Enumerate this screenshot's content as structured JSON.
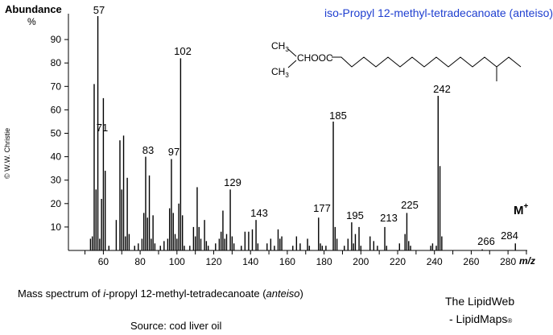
{
  "header": {
    "y_axis_label": "Abundance",
    "y_axis_unit": "%",
    "title": "iso-Propyl 12-methyl-tetradecanoate  (anteiso)"
  },
  "structure": {
    "methyl_top": "CH3",
    "group": "CHOOC",
    "methyl_bottom": "CH3"
  },
  "molecular_ion_label": "M+",
  "copyright": "© W.W. Christie",
  "caption": {
    "prefix": "Mass spectrum of ",
    "italic_i": "i",
    "middle": "-propyl 12-methyl-tetradecanoate (",
    "italic_anteiso": "anteiso",
    "suffix": ")"
  },
  "source": "Source: cod liver oil",
  "branding": {
    "line1": "The LipidWeb",
    "line2": "- LipidMaps",
    "mark": "®"
  },
  "chart_data": {
    "type": "bar",
    "xlabel": "m/z",
    "ylabel": "Abundance %",
    "xlim": [
      41,
      291
    ],
    "ylim": [
      0,
      100
    ],
    "x_ticks": [
      60,
      80,
      100,
      120,
      140,
      160,
      180,
      200,
      220,
      240,
      260,
      280
    ],
    "y_ticks": [
      10,
      20,
      30,
      40,
      50,
      60,
      70,
      80,
      90
    ],
    "peaks": [
      {
        "x": 53,
        "y": 5
      },
      {
        "x": 54,
        "y": 6
      },
      {
        "x": 55,
        "y": 71
      },
      {
        "x": 56,
        "y": 26
      },
      {
        "x": 57,
        "y": 100
      },
      {
        "x": 58,
        "y": 5
      },
      {
        "x": 59,
        "y": 22
      },
      {
        "x": 60,
        "y": 65
      },
      {
        "x": 61,
        "y": 34
      },
      {
        "x": 63,
        "y": 2
      },
      {
        "x": 67,
        "y": 13
      },
      {
        "x": 69,
        "y": 47
      },
      {
        "x": 70,
        "y": 26
      },
      {
        "x": 71,
        "y": 49
      },
      {
        "x": 72,
        "y": 6
      },
      {
        "x": 73,
        "y": 31
      },
      {
        "x": 74,
        "y": 7
      },
      {
        "x": 77,
        "y": 2
      },
      {
        "x": 79,
        "y": 3
      },
      {
        "x": 81,
        "y": 5
      },
      {
        "x": 82,
        "y": 16
      },
      {
        "x": 83,
        "y": 40
      },
      {
        "x": 84,
        "y": 14
      },
      {
        "x": 85,
        "y": 32
      },
      {
        "x": 86,
        "y": 5
      },
      {
        "x": 87,
        "y": 15
      },
      {
        "x": 88,
        "y": 3
      },
      {
        "x": 91,
        "y": 2
      },
      {
        "x": 93,
        "y": 4
      },
      {
        "x": 95,
        "y": 5
      },
      {
        "x": 96,
        "y": 18
      },
      {
        "x": 97,
        "y": 39
      },
      {
        "x": 98,
        "y": 16
      },
      {
        "x": 99,
        "y": 7
      },
      {
        "x": 100,
        "y": 5
      },
      {
        "x": 101,
        "y": 20
      },
      {
        "x": 102,
        "y": 82
      },
      {
        "x": 103,
        "y": 15
      },
      {
        "x": 104,
        "y": 2
      },
      {
        "x": 107,
        "y": 2
      },
      {
        "x": 109,
        "y": 10
      },
      {
        "x": 110,
        "y": 6
      },
      {
        "x": 111,
        "y": 27
      },
      {
        "x": 112,
        "y": 10
      },
      {
        "x": 113,
        "y": 5
      },
      {
        "x": 115,
        "y": 13
      },
      {
        "x": 116,
        "y": 4
      },
      {
        "x": 117,
        "y": 2
      },
      {
        "x": 121,
        "y": 3
      },
      {
        "x": 123,
        "y": 5
      },
      {
        "x": 124,
        "y": 8
      },
      {
        "x": 125,
        "y": 17
      },
      {
        "x": 126,
        "y": 5
      },
      {
        "x": 127,
        "y": 7
      },
      {
        "x": 129,
        "y": 26
      },
      {
        "x": 130,
        "y": 6
      },
      {
        "x": 131,
        "y": 3
      },
      {
        "x": 135,
        "y": 2
      },
      {
        "x": 137,
        "y": 8
      },
      {
        "x": 139,
        "y": 8
      },
      {
        "x": 141,
        "y": 9
      },
      {
        "x": 143,
        "y": 13
      },
      {
        "x": 144,
        "y": 3
      },
      {
        "x": 149,
        "y": 3
      },
      {
        "x": 151,
        "y": 5
      },
      {
        "x": 153,
        "y": 2
      },
      {
        "x": 155,
        "y": 9
      },
      {
        "x": 156,
        "y": 5
      },
      {
        "x": 157,
        "y": 6
      },
      {
        "x": 163,
        "y": 2
      },
      {
        "x": 165,
        "y": 6
      },
      {
        "x": 167,
        "y": 3
      },
      {
        "x": 171,
        "y": 5
      },
      {
        "x": 172,
        "y": 2
      },
      {
        "x": 177,
        "y": 14
      },
      {
        "x": 178,
        "y": 3
      },
      {
        "x": 179,
        "y": 2
      },
      {
        "x": 181,
        "y": 2
      },
      {
        "x": 185,
        "y": 55
      },
      {
        "x": 186,
        "y": 10
      },
      {
        "x": 187,
        "y": 5
      },
      {
        "x": 191,
        "y": 2
      },
      {
        "x": 193,
        "y": 5
      },
      {
        "x": 195,
        "y": 12
      },
      {
        "x": 196,
        "y": 3
      },
      {
        "x": 197,
        "y": 7
      },
      {
        "x": 199,
        "y": 10
      },
      {
        "x": 200,
        "y": 2
      },
      {
        "x": 205,
        "y": 6
      },
      {
        "x": 207,
        "y": 4
      },
      {
        "x": 209,
        "y": 2
      },
      {
        "x": 213,
        "y": 10
      },
      {
        "x": 214,
        "y": 2
      },
      {
        "x": 221,
        "y": 3
      },
      {
        "x": 224,
        "y": 7
      },
      {
        "x": 225,
        "y": 16
      },
      {
        "x": 226,
        "y": 4
      },
      {
        "x": 227,
        "y": 2
      },
      {
        "x": 238,
        "y": 2
      },
      {
        "x": 239,
        "y": 3
      },
      {
        "x": 241,
        "y": 2
      },
      {
        "x": 242,
        "y": 66
      },
      {
        "x": 243,
        "y": 36
      },
      {
        "x": 244,
        "y": 6
      },
      {
        "x": 266,
        "y": 0.5
      },
      {
        "x": 284,
        "y": 3
      }
    ],
    "labeled_peaks": [
      57,
      71,
      83,
      97,
      102,
      129,
      143,
      177,
      185,
      195,
      213,
      225,
      242,
      266,
      284
    ],
    "label_positions": {
      "57": [
        123,
        17
      ],
      "71": [
        127,
        163
      ],
      "83": [
        184,
        191
      ],
      "97": [
        216,
        193
      ],
      "102": [
        227,
        68
      ],
      "129": [
        289,
        231
      ],
      "143": [
        322,
        269
      ],
      "177": [
        400,
        263
      ],
      "185": [
        420,
        148
      ],
      "195": [
        441,
        272
      ],
      "213": [
        483,
        275
      ],
      "225": [
        509,
        259
      ],
      "242": [
        549,
        115
      ],
      "266": [
        604,
        304
      ],
      "284": [
        633,
        297
      ]
    }
  }
}
